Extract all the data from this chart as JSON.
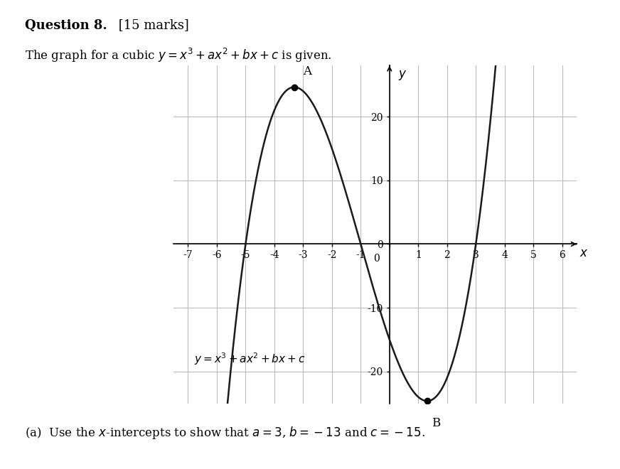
{
  "title_line1": "Question 8.",
  "title_line1_bold": true,
  "title_line1_suffix": " [15 marks]",
  "title_line2": "The graph for a cubic $y = x^3 + ax^2 + bx + c$ is given.",
  "bottom_text": "(a)  Use the $x$-intercepts to show that $a = 3$, $b = -13$ and $c = -15$.",
  "equation_label": "$y = x^3 + ax^2 + bx + c$",
  "coefficients": {
    "a": 3,
    "b": -13,
    "c": -15
  },
  "x_range": [
    -7.5,
    6.5
  ],
  "y_range": [
    -25,
    28
  ],
  "x_ticks": [
    -7,
    -6,
    -5,
    -4,
    -3,
    -2,
    -1,
    0,
    1,
    2,
    3,
    4,
    5,
    6
  ],
  "y_ticks": [
    -20,
    -10,
    0,
    10,
    20
  ],
  "grid_color": "#bbbbbb",
  "curve_color": "#1a1a1a",
  "background_color": "#ffffff",
  "point_A": {
    "x": -3.111,
    "label": "A"
  },
  "point_B": {
    "x": 1.444,
    "label": "B"
  },
  "figsize": [
    8.72,
    6.6
  ],
  "dpi": 100
}
